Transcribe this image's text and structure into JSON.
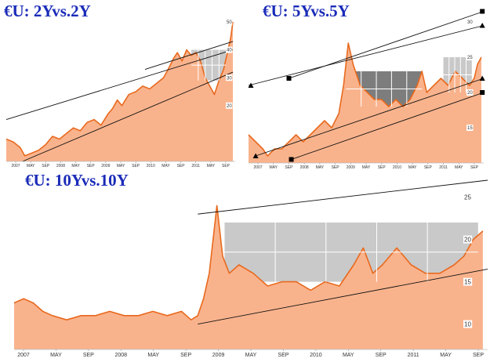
{
  "colors": {
    "area_fill": "#f9b38c",
    "line": "#e8691e",
    "band_light": "#c9c9c9",
    "band_dark": "#7d7d7d",
    "trend": "#111111",
    "title": "#1a2bb8",
    "axis_label_bg": "#ffffff"
  },
  "chart_data": [
    {
      "type": "area",
      "title": "€U: 2Yvs.2Y",
      "x_tick_labels": [
        "2007",
        "MAY",
        "SEP",
        "2008",
        "MAY",
        "SEP",
        "2009",
        "MAY",
        "SEP",
        "2010",
        "MAY",
        "SEP",
        "2011",
        "MAY",
        "SEP"
      ],
      "y_tick_labels": [
        "50",
        "40",
        "30",
        "20"
      ],
      "ylim": [
        0,
        50
      ],
      "x_range": [
        2006.8,
        2011.75
      ],
      "y_axis_side": "right",
      "series": [
        {
          "x": [
            2006.8,
            2006.95,
            2007.1,
            2007.2,
            2007.35,
            2007.5,
            2007.65,
            2007.8,
            2007.95,
            2008.1,
            2008.25,
            2008.4,
            2008.55,
            2008.7,
            2008.85,
            2009.0,
            2009.1,
            2009.2,
            2009.3,
            2009.45,
            2009.6,
            2009.75,
            2009.9,
            2010.05,
            2010.2,
            2010.3,
            2010.42,
            2010.5,
            2010.6,
            2010.7,
            2010.8,
            2010.9,
            2011.0,
            2011.1,
            2011.2,
            2011.3,
            2011.4,
            2011.5,
            2011.58,
            2011.65,
            2011.7
          ],
          "values": [
            8,
            7,
            5,
            2,
            3,
            4,
            6,
            9,
            8,
            10,
            12,
            11,
            14,
            15,
            13,
            17,
            19,
            22,
            20,
            24,
            25,
            27,
            26,
            28,
            30,
            33,
            37,
            39,
            36,
            40,
            38,
            39,
            36,
            30,
            27,
            24,
            29,
            33,
            39,
            44,
            50
          ]
        }
      ],
      "trendlines": [
        {
          "from": [
            2006.8,
            15
          ],
          "to": [
            2011.7,
            40
          ]
        },
        {
          "from": [
            2007.15,
            0
          ],
          "to": [
            2011.7,
            32
          ]
        },
        {
          "from": [
            2009.8,
            33
          ],
          "to": [
            2011.7,
            43
          ]
        }
      ],
      "bands": [
        {
          "x_start": 2010.8,
          "x_end": 2011.55,
          "y_low": 29,
          "y_high": 40,
          "shade": "light"
        }
      ]
    },
    {
      "type": "area",
      "title": "€U: 5Yvs.5Y",
      "x_tick_labels": [
        "2007",
        "MAY",
        "SEP",
        "2008",
        "MAY",
        "SEP",
        "2009",
        "MAY",
        "SEP",
        "2010",
        "MAY",
        "SEP",
        "2011",
        "MAY",
        "SEP"
      ],
      "y_tick_labels": [
        "30",
        "25",
        "20",
        "15"
      ],
      "ylim": [
        10,
        30
      ],
      "x_range": [
        2006.8,
        2011.75
      ],
      "y_axis_side": "right",
      "series": [
        {
          "x": [
            2006.8,
            2006.95,
            2007.1,
            2007.2,
            2007.35,
            2007.5,
            2007.65,
            2007.8,
            2007.95,
            2008.1,
            2008.25,
            2008.4,
            2008.55,
            2008.7,
            2008.8,
            2008.9,
            2009.0,
            2009.15,
            2009.3,
            2009.45,
            2009.6,
            2009.75,
            2009.9,
            2010.05,
            2010.2,
            2010.35,
            2010.45,
            2010.55,
            2010.7,
            2010.85,
            2011.0,
            2011.15,
            2011.3,
            2011.45,
            2011.55,
            2011.62,
            2011.7
          ],
          "values": [
            14,
            13,
            12,
            11,
            12,
            12,
            13,
            14,
            13,
            14,
            15,
            16,
            15,
            17,
            21,
            27,
            24,
            21,
            20,
            19,
            19,
            18,
            19,
            18,
            19,
            21,
            23,
            20,
            21,
            22,
            21,
            23,
            22,
            21,
            22,
            24,
            25
          ]
        }
      ],
      "trendlines": [
        {
          "from": [
            2006.8,
            21
          ],
          "to": [
            2011.75,
            29.5
          ]
        },
        {
          "from": [
            2007.65,
            22
          ],
          "to": [
            2011.75,
            31.5
          ]
        },
        {
          "from": [
            2006.95,
            11
          ],
          "to": [
            2011.75,
            22
          ]
        },
        {
          "from": [
            2007.7,
            10.5
          ],
          "to": [
            2011.75,
            20
          ]
        }
      ],
      "markers": [
        {
          "x": 2006.85,
          "y": 21,
          "shape": "triangle"
        },
        {
          "x": 2007.65,
          "y": 22,
          "shape": "square"
        },
        {
          "x": 2011.72,
          "y": 29.5,
          "shape": "triangle"
        },
        {
          "x": 2011.72,
          "y": 31.5,
          "shape": "square"
        },
        {
          "x": 2006.95,
          "y": 11,
          "shape": "triangle"
        },
        {
          "x": 2007.7,
          "y": 10.5,
          "shape": "square"
        },
        {
          "x": 2011.72,
          "y": 22,
          "shape": "triangle"
        },
        {
          "x": 2011.72,
          "y": 20,
          "shape": "square"
        }
      ],
      "bands": [
        {
          "x_start": 2008.85,
          "x_end": 2010.45,
          "y_low": 18,
          "y_high": 23,
          "shade": "dark"
        },
        {
          "x_start": 2010.9,
          "x_end": 2011.5,
          "y_low": 20,
          "y_high": 25,
          "shade": "light"
        }
      ]
    },
    {
      "type": "area",
      "title": "€U: 10Yvs.10Y",
      "x_tick_labels": [
        "2007",
        "MAY",
        "SEP",
        "2008",
        "MAY",
        "SEP",
        "2009",
        "MAY",
        "SEP",
        "2010",
        "MAY",
        "SEP",
        "2011",
        "MAY",
        "SEP"
      ],
      "y_tick_labels": [
        "25",
        "20",
        "15",
        "10"
      ],
      "ylim": [
        7,
        27
      ],
      "x_range": [
        2006.8,
        2011.75
      ],
      "y_axis_side": "right",
      "series": [
        {
          "x": [
            2006.8,
            2006.9,
            2007.0,
            2007.1,
            2007.2,
            2007.35,
            2007.5,
            2007.65,
            2007.8,
            2007.95,
            2008.1,
            2008.25,
            2008.4,
            2008.55,
            2008.65,
            2008.72,
            2008.78,
            2008.84,
            2008.88,
            2008.92,
            2008.98,
            2009.05,
            2009.15,
            2009.3,
            2009.45,
            2009.6,
            2009.75,
            2009.9,
            2010.05,
            2010.2,
            2010.35,
            2010.45,
            2010.55,
            2010.65,
            2010.8,
            2010.95,
            2011.1,
            2011.25,
            2011.4,
            2011.5,
            2011.6,
            2011.7
          ],
          "values": [
            12.5,
            13,
            12.5,
            11.5,
            11,
            10.5,
            11,
            11,
            11.5,
            11,
            11,
            11.5,
            11,
            11.5,
            10.5,
            11,
            13,
            16,
            20,
            24,
            18,
            16,
            17,
            16,
            14.5,
            15,
            15,
            14,
            15,
            14.5,
            17,
            19,
            16,
            17,
            19,
            17,
            16,
            16,
            17,
            18,
            20,
            21
          ]
        }
      ],
      "trendlines": [
        {
          "from": [
            2008.72,
            23
          ],
          "to": [
            2011.75,
            27
          ]
        },
        {
          "from": [
            2008.72,
            10
          ],
          "to": [
            2011.75,
            16.5
          ]
        }
      ],
      "bands": [
        {
          "x_start": 2009.0,
          "x_end": 2011.65,
          "y_low": 15,
          "y_high": 22,
          "shade": "light"
        }
      ]
    }
  ]
}
